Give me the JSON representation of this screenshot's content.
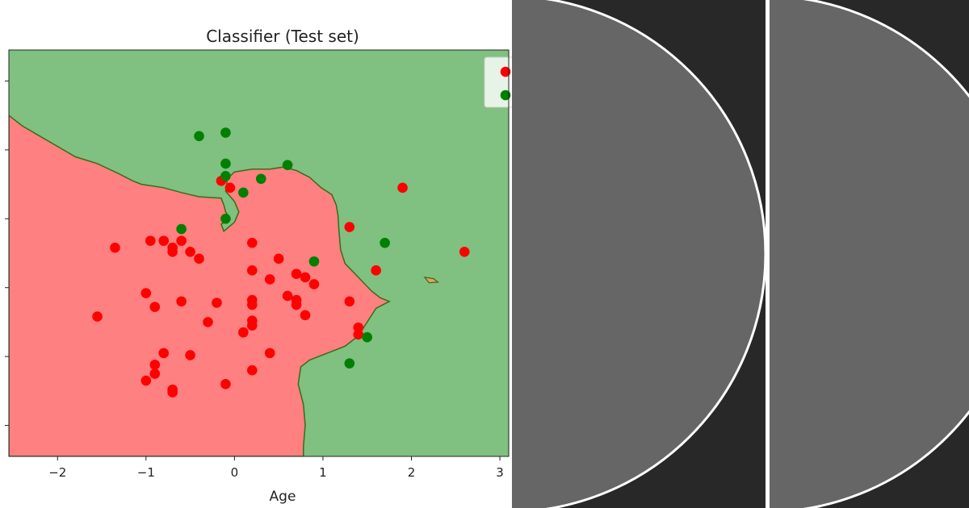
{
  "chart_data": {
    "type": "scatter",
    "title": "Classifier (Test set)",
    "xlabel": "Age",
    "ylabel": "",
    "xlim": [
      -2.55,
      3.1
    ],
    "ylim": [
      -2.45,
      3.45
    ],
    "xticks": [
      -2,
      -1,
      0,
      1,
      2,
      3
    ],
    "x_tick_labels": [
      "−2",
      "−1",
      "0",
      "1",
      "2",
      "3"
    ],
    "yticks": [
      -2,
      -1,
      0,
      1,
      2,
      3
    ],
    "grid": false,
    "legend": {
      "placement": "top-right",
      "entries": [
        "",
        ""
      ]
    },
    "colors": {
      "class0": "#ff0000",
      "class1": "#008000",
      "region0": "#ff8080",
      "region1": "#80c080",
      "boundary": "#3a6b1a"
    },
    "decision_regions": {
      "class0_boundary": [
        [
          -2.55,
          2.5
        ],
        [
          -2.4,
          2.35
        ],
        [
          -2.2,
          2.2
        ],
        [
          -2.0,
          2.05
        ],
        [
          -1.8,
          1.9
        ],
        [
          -1.55,
          1.8
        ],
        [
          -1.3,
          1.65
        ],
        [
          -1.15,
          1.55
        ],
        [
          -1.05,
          1.5
        ],
        [
          -0.95,
          1.48
        ],
        [
          -0.8,
          1.45
        ],
        [
          -0.6,
          1.38
        ],
        [
          -0.4,
          1.32
        ],
        [
          -0.15,
          1.3
        ],
        [
          -0.12,
          1.2
        ],
        [
          -0.1,
          1.1
        ],
        [
          -0.05,
          1.0
        ],
        [
          -0.15,
          0.92
        ],
        [
          -0.12,
          0.82
        ],
        [
          0.0,
          0.95
        ],
        [
          0.05,
          1.1
        ],
        [
          0.0,
          1.25
        ],
        [
          -0.1,
          1.4
        ],
        [
          -0.08,
          1.58
        ],
        [
          0.0,
          1.68
        ],
        [
          0.2,
          1.72
        ],
        [
          0.4,
          1.72
        ],
        [
          0.55,
          1.75
        ],
        [
          0.7,
          1.7
        ],
        [
          0.85,
          1.6
        ],
        [
          0.98,
          1.45
        ],
        [
          1.1,
          1.35
        ],
        [
          1.15,
          1.2
        ],
        [
          1.17,
          1.05
        ],
        [
          1.18,
          0.85
        ],
        [
          1.2,
          0.55
        ],
        [
          1.25,
          0.35
        ],
        [
          1.4,
          0.15
        ],
        [
          1.55,
          -0.05
        ],
        [
          1.65,
          -0.15
        ],
        [
          1.75,
          -0.2
        ],
        [
          1.6,
          -0.3
        ],
        [
          1.5,
          -0.5
        ],
        [
          1.4,
          -0.7
        ],
        [
          1.25,
          -0.85
        ],
        [
          1.05,
          -0.95
        ],
        [
          0.85,
          -1.05
        ],
        [
          0.75,
          -1.15
        ],
        [
          0.72,
          -1.4
        ],
        [
          0.78,
          -1.7
        ],
        [
          0.8,
          -2.0
        ],
        [
          0.78,
          -2.3
        ],
        [
          0.78,
          -2.45
        ],
        [
          -2.55,
          -2.45
        ]
      ],
      "class0_island": [
        [
          2.15,
          0.15
        ],
        [
          2.25,
          0.13
        ],
        [
          2.3,
          0.08
        ],
        [
          2.2,
          0.07
        ]
      ]
    },
    "series": [
      {
        "values": [
          [
            -0.15,
            1.55
          ],
          [
            -0.05,
            1.45
          ],
          [
            -1.35,
            0.58
          ],
          [
            -0.95,
            0.68
          ],
          [
            -0.8,
            0.68
          ],
          [
            -0.6,
            0.68
          ],
          [
            -0.7,
            0.58
          ],
          [
            -0.7,
            0.52
          ],
          [
            -0.5,
            0.52
          ],
          [
            -0.4,
            0.42
          ],
          [
            0.2,
            0.65
          ],
          [
            0.5,
            0.42
          ],
          [
            0.2,
            0.25
          ],
          [
            0.7,
            0.2
          ],
          [
            0.8,
            0.15
          ],
          [
            0.9,
            0.05
          ],
          [
            0.4,
            0.12
          ],
          [
            1.3,
            0.88
          ],
          [
            1.9,
            1.45
          ],
          [
            2.6,
            0.52
          ],
          [
            1.6,
            0.25
          ],
          [
            -1.0,
            -0.08
          ],
          [
            -0.9,
            -0.28
          ],
          [
            -0.6,
            -0.2
          ],
          [
            -1.55,
            -0.42
          ],
          [
            -0.2,
            -0.22
          ],
          [
            0.2,
            -0.18
          ],
          [
            0.2,
            -0.25
          ],
          [
            0.6,
            -0.12
          ],
          [
            0.7,
            -0.18
          ],
          [
            0.7,
            -0.25
          ],
          [
            0.8,
            -0.4
          ],
          [
            1.3,
            -0.2
          ],
          [
            0.2,
            -0.48
          ],
          [
            0.2,
            -0.55
          ],
          [
            -0.3,
            -0.5
          ],
          [
            0.1,
            -0.65
          ],
          [
            1.4,
            -0.58
          ],
          [
            1.4,
            -0.68
          ],
          [
            -0.8,
            -0.95
          ],
          [
            -0.5,
            -0.98
          ],
          [
            0.4,
            -0.95
          ],
          [
            -0.9,
            -1.12
          ],
          [
            -0.9,
            -1.25
          ],
          [
            -1.0,
            -1.35
          ],
          [
            -0.7,
            -1.48
          ],
          [
            -0.7,
            -1.52
          ],
          [
            0.2,
            -1.2
          ],
          [
            -0.1,
            -1.4
          ]
        ]
      },
      {
        "values": [
          [
            -0.4,
            2.2
          ],
          [
            -0.1,
            2.25
          ],
          [
            -0.1,
            1.8
          ],
          [
            0.6,
            1.78
          ],
          [
            0.3,
            1.58
          ],
          [
            -0.1,
            1.62
          ],
          [
            0.1,
            1.38
          ],
          [
            -0.1,
            1.0
          ],
          [
            -0.6,
            0.85
          ],
          [
            1.7,
            0.65
          ],
          [
            0.9,
            0.38
          ],
          [
            1.5,
            -0.72
          ],
          [
            1.3,
            -1.1
          ]
        ]
      }
    ]
  },
  "panels": [
    {
      "background": "#282828",
      "circle_fill": "#666666",
      "circle_stroke": "#ffffff"
    },
    {
      "background": "#282828",
      "circle_fill": "#666666",
      "circle_stroke": "#ffffff"
    }
  ]
}
